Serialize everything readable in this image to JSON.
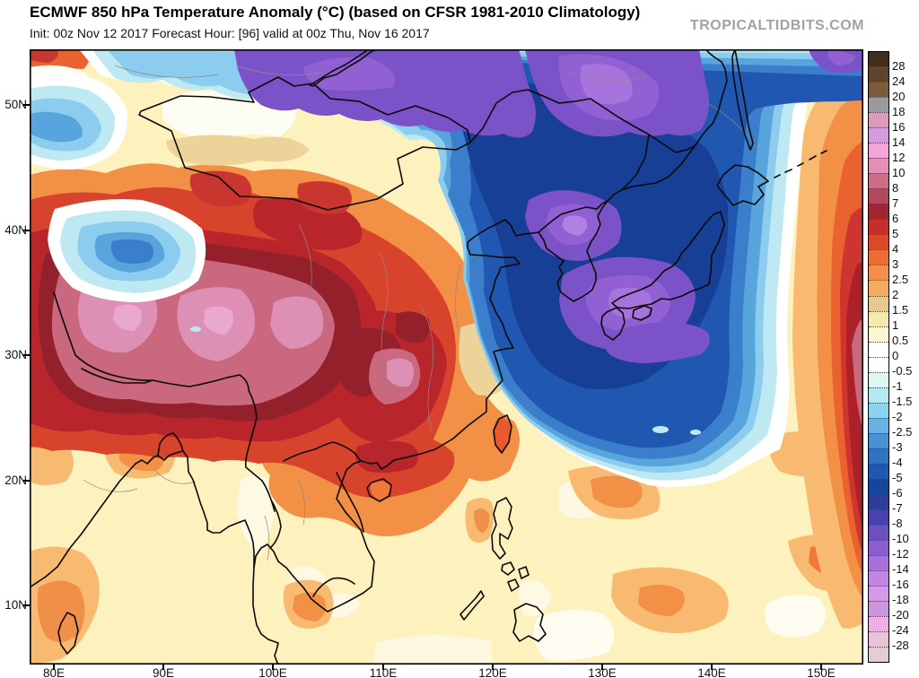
{
  "header": {
    "title": "ECMWF 850 hPa Temperature Anomaly (°C) (based on CFSR 1981-2010 Climatology)",
    "init_line": "Init: 00z Nov 12 2017   Forecast Hour: [96]   valid at 00z Thu, Nov 16 2017",
    "logo": "TROPICALTIDBITS.COM"
  },
  "axes": {
    "lat": [
      "50N",
      "40N",
      "30N",
      "20N",
      "10N"
    ],
    "lon": [
      "80E",
      "90E",
      "100E",
      "110E",
      "120E",
      "130E",
      "140E",
      "150E"
    ]
  },
  "colorbar": {
    "units": "°C",
    "tick_labels": [
      "28",
      "24",
      "20",
      "18",
      "16",
      "14",
      "12",
      "10",
      "8",
      "7",
      "6",
      "5",
      "4",
      "3",
      "2.5",
      "2",
      "1.5",
      "1",
      "0.5",
      "0",
      "-0.5",
      "-1",
      "-1.5",
      "-2",
      "-2.5",
      "-3",
      "-4",
      "-5",
      "-6",
      "-7",
      "-8",
      "-10",
      "-12",
      "-14",
      "-16",
      "-18",
      "-20",
      "-24",
      "-28"
    ],
    "segment_colors": [
      "#3f2d1e",
      "#5f442b",
      "#7d5b3a",
      "#9a9a9a",
      "#dc9cb8",
      "#d49add",
      "#f0a6d8",
      "#e48fba",
      "#cb6e88",
      "#b04a5e",
      "#9e2731",
      "#c42f2c",
      "#dd4928",
      "#ed6c36",
      "#f28f4a",
      "#f5ab62",
      "#e5c98f",
      "#f6e9ae",
      "#fdf6d0",
      "#ffffff",
      "#ffffff",
      "#dff6f2",
      "#b5e9ef",
      "#8ed3ee",
      "#67b4e4",
      "#4792d4",
      "#2f74c0",
      "#2058ae",
      "#16459c",
      "#2c3e97",
      "#4643ae",
      "#6b51c0",
      "#8a5ecf",
      "#a770da",
      "#c286e2",
      "#d898ea",
      "#cc96da",
      "#f0aee4",
      "#e9c3d8",
      "#e3ccd3"
    ]
  }
}
